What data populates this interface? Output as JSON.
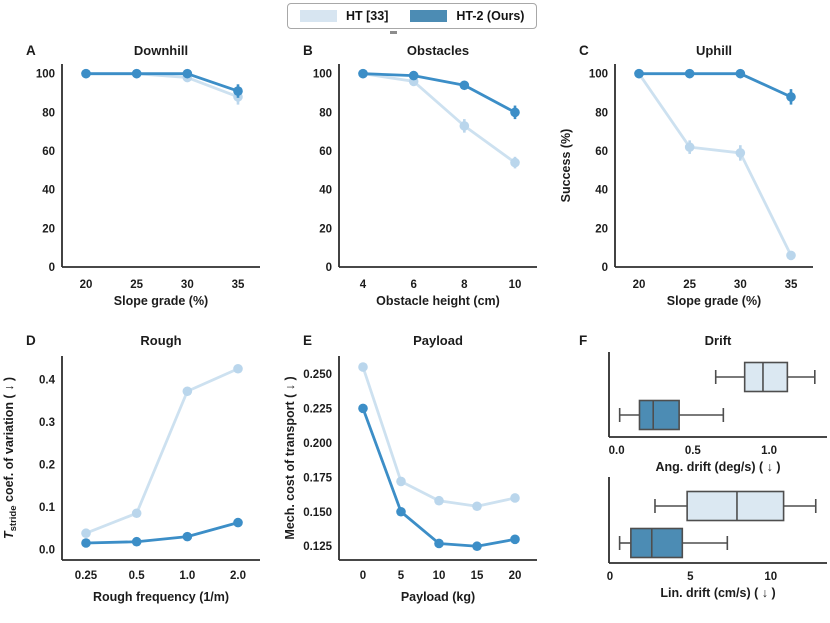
{
  "legend": {
    "entries": [
      {
        "label": "HT [33]",
        "color": "#d7e5f1"
      },
      {
        "label": "HT-2 (Ours)",
        "color": "#4c8cb4"
      }
    ]
  },
  "colors": {
    "spine": "#2e2e2e",
    "text": "#1c1c1c",
    "box_edge": "#4e4e4e",
    "light_line": "#cde1f0",
    "light_marker": "#bad6ec",
    "light_fill": "#dbe8f2",
    "dark_line": "#3c8ec7",
    "dark_marker": "#3c8ec7",
    "dark_fill": "#4c8cb4"
  },
  "chart_data": [
    {
      "id": "A",
      "label": "A",
      "type": "line",
      "title": "Downhill",
      "xlabel": "Slope grade (%)",
      "ylabel": null,
      "categories": [
        "20",
        "25",
        "30",
        "35"
      ],
      "ylim": [
        0,
        105
      ],
      "yticks": [
        {
          "v": 0,
          "t": "0"
        },
        {
          "v": 20,
          "t": "20"
        },
        {
          "v": 40,
          "t": "40"
        },
        {
          "v": 60,
          "t": "60"
        },
        {
          "v": 80,
          "t": "80"
        },
        {
          "v": 100,
          "t": "100"
        }
      ],
      "series": [
        {
          "name": "HT [33]",
          "tone": "light",
          "values": [
            100,
            100,
            98,
            88
          ],
          "err": [
            0,
            0,
            1.5,
            4
          ]
        },
        {
          "name": "HT-2 (Ours)",
          "tone": "dark",
          "values": [
            100,
            100,
            100,
            91
          ],
          "err": [
            0,
            0,
            0,
            3.5
          ]
        }
      ]
    },
    {
      "id": "B",
      "label": "B",
      "type": "line",
      "title": "Obstacles",
      "xlabel": "Obstacle height (cm)",
      "ylabel": null,
      "categories": [
        "4",
        "6",
        "8",
        "10"
      ],
      "ylim": [
        0,
        105
      ],
      "yticks": [
        {
          "v": 0,
          "t": "0"
        },
        {
          "v": 20,
          "t": "20"
        },
        {
          "v": 40,
          "t": "40"
        },
        {
          "v": 60,
          "t": "60"
        },
        {
          "v": 80,
          "t": "80"
        },
        {
          "v": 100,
          "t": "100"
        }
      ],
      "series": [
        {
          "name": "HT [33]",
          "tone": "light",
          "values": [
            100,
            96,
            73,
            54
          ],
          "err": [
            0,
            1.5,
            3.5,
            3
          ]
        },
        {
          "name": "HT-2 (Ours)",
          "tone": "dark",
          "values": [
            100,
            99,
            94,
            80
          ],
          "err": [
            0,
            0,
            1.5,
            3.5
          ]
        }
      ]
    },
    {
      "id": "C",
      "label": "C",
      "type": "line",
      "title": "Uphill",
      "xlabel": "Slope grade (%)",
      "ylabel": "Success (%)",
      "categories": [
        "20",
        "25",
        "30",
        "35"
      ],
      "ylim": [
        0,
        105
      ],
      "yticks": [
        {
          "v": 0,
          "t": "0"
        },
        {
          "v": 20,
          "t": "20"
        },
        {
          "v": 40,
          "t": "40"
        },
        {
          "v": 60,
          "t": "60"
        },
        {
          "v": 80,
          "t": "80"
        },
        {
          "v": 100,
          "t": "100"
        }
      ],
      "series": [
        {
          "name": "HT [33]",
          "tone": "light",
          "values": [
            100,
            62,
            59,
            6
          ],
          "err": [
            0,
            3.5,
            4,
            0
          ]
        },
        {
          "name": "HT-2 (Ours)",
          "tone": "dark",
          "values": [
            100,
            100,
            100,
            88
          ],
          "err": [
            0,
            0,
            0,
            4
          ]
        }
      ]
    },
    {
      "id": "D",
      "label": "D",
      "type": "line",
      "title": "Rough",
      "xlabel": "Rough frequency (1/m)",
      "ylabel": null,
      "ylabel_rich": {
        "italic": "T",
        "sub": "stride",
        "rest": " coef. of variation ( ↓ )"
      },
      "categories": [
        "0.25",
        "0.5",
        "1.0",
        "2.0"
      ],
      "ylim": [
        -0.025,
        0.455
      ],
      "yticks": [
        {
          "v": 0.0,
          "t": "0.0"
        },
        {
          "v": 0.1,
          "t": "0.1"
        },
        {
          "v": 0.2,
          "t": "0.2"
        },
        {
          "v": 0.3,
          "t": "0.3"
        },
        {
          "v": 0.4,
          "t": "0.4"
        }
      ],
      "series": [
        {
          "name": "HT [33]",
          "tone": "light",
          "values": [
            0.038,
            0.085,
            0.372,
            0.425
          ],
          "err": [
            0,
            0,
            0,
            0
          ]
        },
        {
          "name": "HT-2 (Ours)",
          "tone": "dark",
          "values": [
            0.015,
            0.018,
            0.03,
            0.063
          ],
          "err": [
            0,
            0,
            0,
            0
          ]
        }
      ]
    },
    {
      "id": "E",
      "label": "E",
      "type": "line",
      "title": "Payload",
      "xlabel": "Payload (kg)",
      "ylabel": "Mech. cost of transport ( ↓ )",
      "categories": [
        "0",
        "5",
        "10",
        "15",
        "20"
      ],
      "ylim": [
        0.115,
        0.263
      ],
      "yticks": [
        {
          "v": 0.125,
          "t": "0.125"
        },
        {
          "v": 0.15,
          "t": "0.150"
        },
        {
          "v": 0.175,
          "t": "0.175"
        },
        {
          "v": 0.2,
          "t": "0.200"
        },
        {
          "v": 0.225,
          "t": "0.225"
        },
        {
          "v": 0.25,
          "t": "0.250"
        }
      ],
      "series": [
        {
          "name": "HT [33]",
          "tone": "light",
          "values": [
            0.255,
            0.172,
            0.158,
            0.154,
            0.16
          ],
          "err": [
            0,
            0,
            0,
            0,
            0
          ]
        },
        {
          "name": "HT-2 (Ours)",
          "tone": "dark",
          "values": [
            0.225,
            0.15,
            0.127,
            0.125,
            0.13
          ],
          "err": [
            0,
            0,
            0,
            0,
            0
          ]
        }
      ]
    },
    {
      "id": "F",
      "label": "F",
      "type": "box",
      "title": "Drift",
      "subplots": [
        {
          "xlabel": "Ang. drift (deg/s) ( ↓ )",
          "xlim": [
            -0.05,
            1.38
          ],
          "xticks": [
            {
              "v": 0.0,
              "t": "0.0"
            },
            {
              "v": 0.5,
              "t": "0.5"
            },
            {
              "v": 1.0,
              "t": "1.0"
            }
          ],
          "boxes": [
            {
              "name": "HT [33]",
              "tone": "light",
              "lo": 0.65,
              "q1": 0.84,
              "med": 0.96,
              "q3": 1.12,
              "hi": 1.3
            },
            {
              "name": "HT-2 (Ours)",
              "tone": "dark",
              "lo": 0.02,
              "q1": 0.15,
              "med": 0.24,
              "q3": 0.41,
              "hi": 0.7
            }
          ]
        },
        {
          "xlabel": "Lin. drift (cm/s) ( ↓ )",
          "xlim": [
            -0.06,
            13.5
          ],
          "xticks": [
            {
              "v": 0,
              "t": "0"
            },
            {
              "v": 5,
              "t": "5"
            },
            {
              "v": 10,
              "t": "10"
            }
          ],
          "boxes": [
            {
              "name": "HT [33]",
              "tone": "light",
              "lo": 2.8,
              "q1": 4.8,
              "med": 7.9,
              "q3": 10.8,
              "hi": 12.8
            },
            {
              "name": "HT-2 (Ours)",
              "tone": "dark",
              "lo": 0.6,
              "q1": 1.3,
              "med": 2.6,
              "q3": 4.5,
              "hi": 7.3
            }
          ]
        }
      ]
    }
  ]
}
